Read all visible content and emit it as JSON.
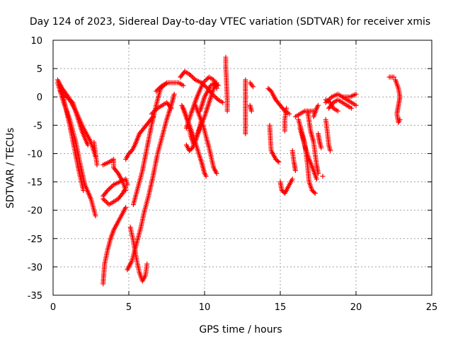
{
  "chart_data": {
    "type": "scatter",
    "title": "Day 124 of 2023, Sidereal Day-to-day VTEC variation (SDTVAR) for receiver xmis",
    "xlabel": "GPS time / hours",
    "ylabel": "SDTVAR / TECUs",
    "xlim": [
      0,
      25
    ],
    "ylim": [
      -35,
      10
    ],
    "xticks": [
      0,
      5,
      10,
      15,
      20,
      25
    ],
    "yticks": [
      10,
      5,
      0,
      -5,
      -10,
      -15,
      -20,
      -25,
      -30,
      -35
    ],
    "grid": true,
    "marker": "+",
    "color": "#ff0000",
    "series": [
      {
        "name": "SDTVAR",
        "segments": [
          [
            [
              0.3,
              3.0
            ],
            [
              0.6,
              1.5
            ],
            [
              1.0,
              0.0
            ],
            [
              1.5,
              -2.5
            ],
            [
              2.0,
              -5.5
            ],
            [
              2.5,
              -8.0
            ],
            [
              2.8,
              -10.5
            ]
          ],
          [
            [
              0.3,
              2.5
            ],
            [
              0.7,
              -1.0
            ],
            [
              1.1,
              -4.0
            ],
            [
              1.5,
              -8.0
            ],
            [
              1.8,
              -12.0
            ],
            [
              2.1,
              -15.5
            ],
            [
              2.5,
              -18.0
            ],
            [
              2.8,
              -21.0
            ]
          ],
          [
            [
              0.5,
              2.0
            ],
            [
              0.8,
              -1.5
            ],
            [
              1.1,
              -5.0
            ],
            [
              1.4,
              -9.0
            ],
            [
              1.7,
              -13.0
            ],
            [
              2.0,
              -16.5
            ]
          ],
          [
            [
              0.5,
              1.0
            ],
            [
              0.9,
              0.0
            ],
            [
              1.3,
              -1.0
            ],
            [
              1.6,
              -3.5
            ],
            [
              1.9,
              -6.0
            ],
            [
              2.3,
              -8.5
            ]
          ],
          [
            [
              2.7,
              -8.0
            ],
            [
              2.8,
              -10.0
            ],
            [
              2.9,
              -12.0
            ]
          ],
          [
            [
              3.3,
              -12.0
            ],
            [
              3.7,
              -11.5
            ],
            [
              4.0,
              -11.0
            ],
            [
              4.0,
              -12.5
            ],
            [
              4.3,
              -13.5
            ],
            [
              4.6,
              -15.0
            ],
            [
              4.8,
              -16.5
            ]
          ],
          [
            [
              3.3,
              -18.0
            ],
            [
              3.7,
              -19.0
            ],
            [
              4.0,
              -18.5
            ],
            [
              4.3,
              -18.0
            ],
            [
              4.6,
              -17.0
            ],
            [
              4.8,
              -16.0
            ]
          ],
          [
            [
              3.3,
              -17.5
            ],
            [
              3.6,
              -16.5
            ],
            [
              4.0,
              -15.5
            ],
            [
              4.4,
              -15.0
            ],
            [
              4.8,
              -14.5
            ],
            [
              4.9,
              -15.5
            ]
          ],
          [
            [
              3.3,
              -33.0
            ],
            [
              3.4,
              -29.5
            ],
            [
              3.6,
              -27.0
            ],
            [
              3.8,
              -25.0
            ],
            [
              4.0,
              -23.5
            ],
            [
              4.2,
              -22.5
            ],
            [
              4.5,
              -21.0
            ],
            [
              4.8,
              -19.5
            ]
          ],
          [
            [
              4.8,
              -11.0
            ],
            [
              5.0,
              -10.0
            ],
            [
              5.2,
              -9.5
            ],
            [
              5.4,
              -8.5
            ],
            [
              5.7,
              -6.5
            ],
            [
              6.0,
              -5.5
            ],
            [
              6.3,
              -4.5
            ],
            [
              6.6,
              -3.5
            ]
          ],
          [
            [
              4.9,
              -30.5
            ],
            [
              5.2,
              -29.0
            ],
            [
              5.5,
              -26.0
            ],
            [
              5.8,
              -23.0
            ],
            [
              6.0,
              -20.5
            ],
            [
              6.3,
              -17.5
            ],
            [
              6.6,
              -14.0
            ],
            [
              6.9,
              -10.0
            ],
            [
              7.2,
              -7.0
            ],
            [
              7.5,
              -4.0
            ],
            [
              7.8,
              -1.5
            ],
            [
              8.0,
              0.5
            ]
          ],
          [
            [
              5.1,
              -23.0
            ],
            [
              5.3,
              -25.5
            ],
            [
              5.5,
              -28.5
            ],
            [
              5.7,
              -31.0
            ],
            [
              5.9,
              -32.5
            ],
            [
              6.1,
              -31.5
            ],
            [
              6.2,
              -29.5
            ]
          ],
          [
            [
              5.3,
              -19.0
            ],
            [
              5.6,
              -16.0
            ],
            [
              5.9,
              -13.0
            ],
            [
              6.2,
              -9.0
            ],
            [
              6.5,
              -5.0
            ],
            [
              6.8,
              -1.5
            ],
            [
              7.1,
              1.5
            ],
            [
              7.5,
              2.5
            ]
          ],
          [
            [
              6.5,
              -3.0
            ],
            [
              6.9,
              -2.0
            ],
            [
              7.2,
              -1.5
            ],
            [
              7.5,
              -1.0
            ],
            [
              7.8,
              -2.0
            ]
          ],
          [
            [
              6.8,
              1.0
            ],
            [
              7.2,
              2.0
            ],
            [
              7.6,
              2.5
            ],
            [
              8.0,
              2.5
            ],
            [
              8.3,
              2.5
            ],
            [
              8.6,
              2.0
            ]
          ],
          [
            [
              8.4,
              3.5
            ],
            [
              8.7,
              4.5
            ],
            [
              9.0,
              4.0
            ],
            [
              9.4,
              3.0
            ],
            [
              9.8,
              2.5
            ],
            [
              10.2,
              1.5
            ],
            [
              10.5,
              0.5
            ],
            [
              10.9,
              -0.5
            ],
            [
              11.2,
              -1.0
            ]
          ],
          [
            [
              8.5,
              -1.5
            ],
            [
              8.8,
              -3.5
            ],
            [
              9.2,
              -6.5
            ],
            [
              9.5,
              -9.0
            ],
            [
              9.8,
              -11.5
            ],
            [
              10.0,
              -13.5
            ],
            [
              10.1,
              -14.0
            ]
          ],
          [
            [
              8.8,
              -8.5
            ],
            [
              9.0,
              -9.5
            ],
            [
              9.2,
              -9.0
            ],
            [
              9.4,
              -7.5
            ],
            [
              9.7,
              -5.5
            ],
            [
              10.0,
              -3.5
            ],
            [
              10.3,
              -1.0
            ],
            [
              10.6,
              1.5
            ],
            [
              10.8,
              2.5
            ]
          ],
          [
            [
              8.6,
              -2.0
            ],
            [
              8.9,
              -4.5
            ],
            [
              9.1,
              -7.0
            ],
            [
              9.3,
              -8.5
            ],
            [
              9.5,
              -7.0
            ],
            [
              9.8,
              -4.0
            ]
          ],
          [
            [
              8.8,
              -5.5
            ],
            [
              9.1,
              -3.0
            ],
            [
              9.5,
              0.0
            ],
            [
              9.9,
              2.5
            ],
            [
              10.3,
              3.5
            ],
            [
              10.6,
              3.0
            ],
            [
              10.8,
              1.5
            ]
          ],
          [
            [
              9.7,
              -2.5
            ],
            [
              10.0,
              0.0
            ],
            [
              10.4,
              2.0
            ],
            [
              10.7,
              2.5
            ],
            [
              10.9,
              2.0
            ]
          ],
          [
            [
              9.4,
              -1.5
            ],
            [
              9.9,
              -5.0
            ],
            [
              10.3,
              -9.0
            ],
            [
              10.6,
              -12.5
            ],
            [
              10.8,
              -13.5
            ]
          ],
          [
            [
              11.4,
              7.0
            ],
            [
              11.4,
              5.5
            ],
            [
              11.5,
              -0.5
            ],
            [
              11.5,
              -2.5
            ]
          ],
          [
            [
              12.7,
              -6.5
            ],
            [
              12.7,
              3.0
            ]
          ],
          [
            [
              13.0,
              2.5
            ],
            [
              13.2,
              1.8
            ]
          ],
          [
            [
              13.0,
              -1.5
            ],
            [
              13.1,
              -2.5
            ]
          ],
          [
            [
              14.2,
              1.5
            ],
            [
              14.4,
              1.0
            ],
            [
              14.7,
              -0.5
            ],
            [
              15.0,
              -1.5
            ],
            [
              15.3,
              -2.5
            ],
            [
              15.6,
              -3.0
            ]
          ],
          [
            [
              14.3,
              -5.0
            ],
            [
              14.35,
              -7.5
            ],
            [
              14.4,
              -9.5
            ],
            [
              14.5,
              -10.0
            ]
          ],
          [
            [
              14.5,
              -10.0
            ],
            [
              14.7,
              -11.0
            ],
            [
              14.9,
              -11.5
            ]
          ],
          [
            [
              15.4,
              -2.0
            ],
            [
              15.3,
              -4.0
            ],
            [
              15.3,
              -6.0
            ]
          ],
          [
            [
              15.0,
              -15.0
            ],
            [
              15.1,
              -16.5
            ],
            [
              15.3,
              -17.0
            ],
            [
              15.5,
              -16.0
            ],
            [
              15.8,
              -14.5
            ]
          ],
          [
            [
              15.8,
              -9.5
            ],
            [
              15.9,
              -11.5
            ],
            [
              16.0,
              -13.0
            ]
          ],
          [
            [
              16.0,
              -3.5
            ],
            [
              16.3,
              -3.0
            ],
            [
              16.6,
              -2.5
            ],
            [
              16.9,
              -2.5
            ],
            [
              17.2,
              -2.5
            ]
          ],
          [
            [
              16.2,
              -4.0
            ],
            [
              16.4,
              -6.0
            ],
            [
              16.6,
              -8.0
            ],
            [
              16.7,
              -10.0
            ],
            [
              16.8,
              -12.0
            ],
            [
              16.9,
              -15.0
            ],
            [
              17.1,
              -16.5
            ],
            [
              17.3,
              -17.0
            ]
          ],
          [
            [
              16.3,
              -5.5
            ],
            [
              16.6,
              -8.5
            ],
            [
              16.9,
              -11.0
            ],
            [
              17.2,
              -13.0
            ],
            [
              17.4,
              -14.5
            ]
          ],
          [
            [
              16.8,
              -2.5
            ],
            [
              17.0,
              -6.0
            ],
            [
              17.2,
              -8.0
            ],
            [
              17.3,
              -10.0
            ],
            [
              17.4,
              -12.0
            ],
            [
              17.5,
              -13.5
            ]
          ],
          [
            [
              17.5,
              -6.5
            ],
            [
              17.6,
              -8.0
            ],
            [
              17.7,
              -9.0
            ]
          ],
          [
            [
              17.2,
              -3.5
            ],
            [
              17.4,
              -2.0
            ],
            [
              17.5,
              -1.5
            ]
          ],
          [
            [
              17.8,
              -14.0
            ]
          ],
          [
            [
              18.0,
              -0.5
            ],
            [
              18.3,
              -1.0
            ],
            [
              18.5,
              -2.0
            ],
            [
              18.8,
              -2.5
            ]
          ],
          [
            [
              18.0,
              -4.0
            ],
            [
              18.1,
              -6.0
            ],
            [
              18.2,
              -8.5
            ],
            [
              18.3,
              -9.5
            ]
          ],
          [
            [
              18.0,
              -1.0
            ],
            [
              18.4,
              0.0
            ],
            [
              18.8,
              0.5
            ],
            [
              19.1,
              0.0
            ],
            [
              19.4,
              -0.5
            ],
            [
              19.7,
              -1.0
            ],
            [
              20.0,
              -1.5
            ]
          ],
          [
            [
              18.2,
              -2.0
            ],
            [
              18.5,
              -1.0
            ],
            [
              18.8,
              -0.5
            ],
            [
              19.1,
              -1.0
            ],
            [
              19.4,
              -1.5
            ],
            [
              19.7,
              -2.0
            ]
          ],
          [
            [
              19.1,
              0.0
            ],
            [
              19.6,
              0.0
            ],
            [
              20.0,
              0.5
            ]
          ],
          [
            [
              22.2,
              3.5
            ],
            [
              22.5,
              3.5
            ]
          ],
          [
            [
              22.6,
              3.0
            ],
            [
              22.8,
              1.5
            ],
            [
              22.9,
              0.0
            ],
            [
              22.8,
              -1.5
            ],
            [
              22.7,
              -3.0
            ],
            [
              22.8,
              -4.5
            ],
            [
              22.9,
              -4.0
            ]
          ]
        ]
      }
    ]
  }
}
